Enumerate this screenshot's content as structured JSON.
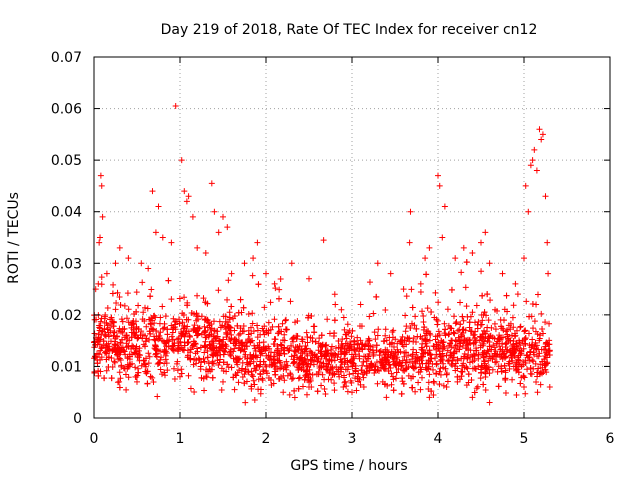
{
  "chart_data": {
    "type": "scatter",
    "title": "Day 219 of 2018, Rate Of TEC Index for receiver cn12",
    "xlabel": "GPS time / hours",
    "ylabel": "ROTI / TECUs",
    "xlim": [
      0,
      6
    ],
    "ylim": [
      0,
      0.07
    ],
    "xticks": [
      0,
      1,
      2,
      3,
      4,
      5,
      6
    ],
    "xtick_labels": [
      "0",
      "1",
      "2",
      "3",
      "4",
      "5",
      "6"
    ],
    "yticks": [
      0,
      0.01,
      0.02,
      0.03,
      0.04,
      0.05,
      0.06,
      0.07
    ],
    "ytick_labels": [
      "0",
      "0.01",
      "0.02",
      "0.03",
      "0.04",
      "0.05",
      "0.06",
      "0.07"
    ],
    "grid": true,
    "marker": "+",
    "color": "#ff0000",
    "series": [
      {
        "name": "ROTI",
        "x_range": [
          0.0,
          5.3
        ],
        "n_points": 2600,
        "points": [
          [
            0.02,
            0.025
          ],
          [
            0.05,
            0.026
          ],
          [
            0.08,
            0.047
          ],
          [
            0.09,
            0.045
          ],
          [
            0.1,
            0.039
          ],
          [
            0.07,
            0.035
          ],
          [
            0.06,
            0.034
          ],
          [
            0.15,
            0.028
          ],
          [
            0.25,
            0.03
          ],
          [
            0.3,
            0.033
          ],
          [
            0.4,
            0.031
          ],
          [
            0.55,
            0.03
          ],
          [
            0.63,
            0.029
          ],
          [
            0.68,
            0.044
          ],
          [
            0.75,
            0.041
          ],
          [
            0.72,
            0.036
          ],
          [
            0.8,
            0.035
          ],
          [
            0.9,
            0.034
          ],
          [
            0.95,
            0.0605
          ],
          [
            1.02,
            0.05
          ],
          [
            1.05,
            0.044
          ],
          [
            1.08,
            0.042
          ],
          [
            1.1,
            0.043
          ],
          [
            1.15,
            0.039
          ],
          [
            1.2,
            0.033
          ],
          [
            1.3,
            0.032
          ],
          [
            1.37,
            0.0455
          ],
          [
            1.4,
            0.04
          ],
          [
            1.45,
            0.036
          ],
          [
            1.5,
            0.039
          ],
          [
            1.55,
            0.037
          ],
          [
            1.6,
            0.028
          ],
          [
            1.75,
            0.03
          ],
          [
            1.85,
            0.031
          ],
          [
            1.9,
            0.034
          ],
          [
            2.0,
            0.028
          ],
          [
            2.1,
            0.026
          ],
          [
            2.3,
            0.03
          ],
          [
            2.5,
            0.027
          ],
          [
            2.67,
            0.0345
          ],
          [
            2.8,
            0.024
          ],
          [
            3.1,
            0.022
          ],
          [
            3.3,
            0.03
          ],
          [
            3.45,
            0.028
          ],
          [
            3.6,
            0.025
          ],
          [
            3.67,
            0.034
          ],
          [
            3.68,
            0.04
          ],
          [
            3.8,
            0.026
          ],
          [
            3.85,
            0.031
          ],
          [
            3.9,
            0.033
          ],
          [
            4.0,
            0.047
          ],
          [
            4.02,
            0.045
          ],
          [
            4.05,
            0.035
          ],
          [
            4.08,
            0.041
          ],
          [
            4.2,
            0.031
          ],
          [
            4.3,
            0.033
          ],
          [
            4.4,
            0.032
          ],
          [
            4.5,
            0.034
          ],
          [
            4.55,
            0.036
          ],
          [
            4.6,
            0.03
          ],
          [
            4.75,
            0.028
          ],
          [
            4.9,
            0.026
          ],
          [
            5.0,
            0.031
          ],
          [
            5.02,
            0.045
          ],
          [
            5.05,
            0.04
          ],
          [
            5.08,
            0.049
          ],
          [
            5.1,
            0.05
          ],
          [
            5.12,
            0.052
          ],
          [
            5.15,
            0.048
          ],
          [
            5.18,
            0.056
          ],
          [
            5.2,
            0.054
          ],
          [
            5.22,
            0.055
          ],
          [
            5.25,
            0.043
          ],
          [
            5.27,
            0.034
          ],
          [
            5.28,
            0.028
          ],
          [
            0.5,
            0.007
          ],
          [
            1.0,
            0.008
          ],
          [
            1.5,
            0.007
          ],
          [
            1.87,
            0.0035
          ],
          [
            2.2,
            0.005
          ],
          [
            2.5,
            0.006
          ],
          [
            3.0,
            0.005
          ],
          [
            3.4,
            0.004
          ],
          [
            3.9,
            0.004
          ],
          [
            4.1,
            0.006
          ],
          [
            4.4,
            0.004
          ],
          [
            4.6,
            0.003
          ],
          [
            5.0,
            0.006
          ],
          [
            5.3,
            0.006
          ]
        ]
      }
    ]
  }
}
